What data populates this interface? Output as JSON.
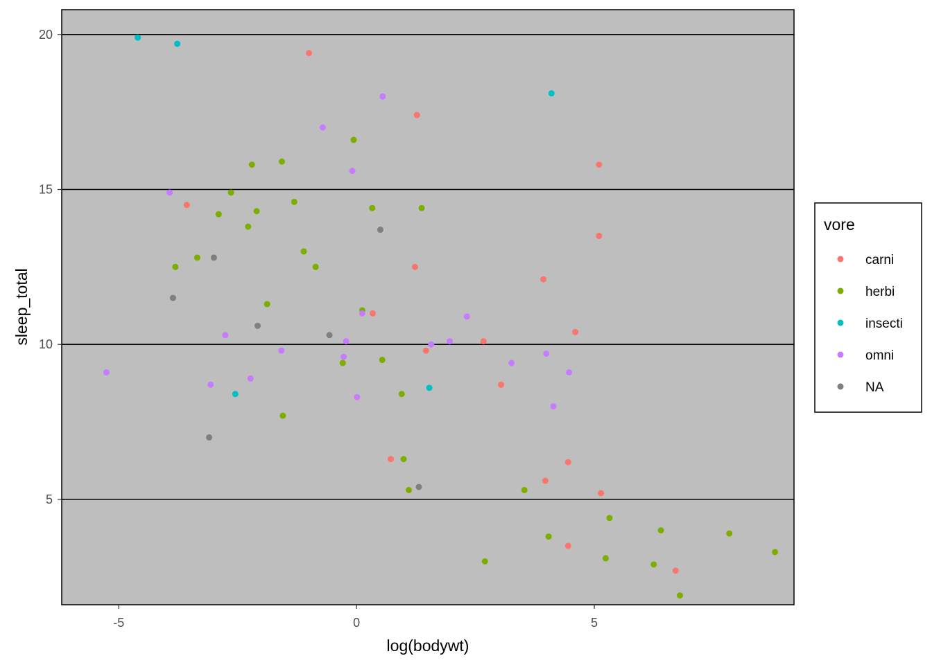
{
  "chart_data": {
    "type": "scatter",
    "title": "",
    "xlabel": "log(bodywt)",
    "ylabel": "sleep_total",
    "xlim": [
      -6.2,
      9.2
    ],
    "ylim": [
      1.6,
      20.8
    ],
    "x_ticks": [
      -5,
      0,
      5
    ],
    "x_tick_labels": [
      "-5",
      "0",
      "5"
    ],
    "y_ticks": [
      5,
      10,
      15,
      20
    ],
    "y_tick_labels": [
      "5",
      "10",
      "15",
      "20"
    ],
    "grid": "horizontal major lines",
    "panel_background": "#bebebe",
    "legend": {
      "title": "vore",
      "position": "right",
      "entries": [
        "carni",
        "herbi",
        "insecti",
        "omni",
        "NA"
      ]
    },
    "colors": {
      "carni": "#F8766D",
      "herbi": "#7CAE00",
      "insecti": "#00BFC4",
      "omni": "#C77CFF",
      "NA": "#7F7F7F"
    },
    "series": [
      {
        "name": "carni",
        "points": [
          [
            -1.0,
            19.4
          ],
          [
            1.27,
            17.4
          ],
          [
            -3.57,
            14.5
          ],
          [
            5.1,
            15.8
          ],
          [
            5.1,
            13.5
          ],
          [
            1.23,
            12.5
          ],
          [
            3.93,
            12.1
          ],
          [
            0.34,
            11.0
          ],
          [
            4.6,
            10.4
          ],
          [
            2.67,
            10.1
          ],
          [
            1.46,
            9.8
          ],
          [
            3.04,
            8.7
          ],
          [
            0.72,
            6.3
          ],
          [
            3.97,
            5.6
          ],
          [
            4.45,
            6.2
          ],
          [
            5.14,
            5.2
          ],
          [
            4.45,
            3.5
          ],
          [
            6.71,
            2.7
          ]
        ]
      },
      {
        "name": "herbi",
        "points": [
          [
            -0.06,
            16.6
          ],
          [
            -1.57,
            15.9
          ],
          [
            -2.2,
            15.8
          ],
          [
            -2.64,
            14.9
          ],
          [
            -1.31,
            14.6
          ],
          [
            -2.9,
            14.2
          ],
          [
            -2.1,
            14.3
          ],
          [
            0.33,
            14.4
          ],
          [
            1.37,
            14.4
          ],
          [
            -2.28,
            13.8
          ],
          [
            -1.11,
            13.0
          ],
          [
            -3.35,
            12.8
          ],
          [
            -3.81,
            12.5
          ],
          [
            -0.86,
            12.5
          ],
          [
            -1.88,
            11.3
          ],
          [
            0.12,
            11.1
          ],
          [
            -0.29,
            9.4
          ],
          [
            0.54,
            9.5
          ],
          [
            0.95,
            8.4
          ],
          [
            -1.55,
            7.7
          ],
          [
            0.99,
            6.3
          ],
          [
            1.1,
            5.3
          ],
          [
            3.53,
            5.3
          ],
          [
            5.32,
            4.4
          ],
          [
            6.4,
            4.0
          ],
          [
            7.84,
            3.9
          ],
          [
            4.04,
            3.8
          ],
          [
            8.8,
            3.3
          ],
          [
            2.7,
            3.0
          ],
          [
            5.24,
            3.1
          ],
          [
            6.25,
            2.9
          ],
          [
            6.8,
            1.9
          ]
        ]
      },
      {
        "name": "insecti",
        "points": [
          [
            -4.6,
            19.9
          ],
          [
            -3.77,
            19.7
          ],
          [
            4.1,
            18.1
          ],
          [
            -2.55,
            8.4
          ],
          [
            1.53,
            8.6
          ]
        ]
      },
      {
        "name": "omni",
        "points": [
          [
            0.55,
            18.0
          ],
          [
            -0.71,
            17.0
          ],
          [
            -0.09,
            15.6
          ],
          [
            -3.93,
            14.9
          ],
          [
            2.32,
            10.9
          ],
          [
            0.12,
            11.0
          ],
          [
            -2.76,
            10.3
          ],
          [
            -0.22,
            10.1
          ],
          [
            1.96,
            10.1
          ],
          [
            1.57,
            10.0
          ],
          [
            -1.58,
            9.8
          ],
          [
            -0.27,
            9.6
          ],
          [
            3.99,
            9.7
          ],
          [
            3.26,
            9.4
          ],
          [
            4.47,
            9.1
          ],
          [
            -5.26,
            9.1
          ],
          [
            -2.23,
            8.9
          ],
          [
            -3.07,
            8.7
          ],
          [
            0.01,
            8.3
          ],
          [
            4.14,
            8.0
          ]
        ]
      },
      {
        "name": "NA",
        "points": [
          [
            0.5,
            13.7
          ],
          [
            -3.0,
            12.8
          ],
          [
            -3.86,
            11.5
          ],
          [
            -2.08,
            10.6
          ],
          [
            -0.57,
            10.3
          ],
          [
            -3.1,
            7.0
          ],
          [
            1.31,
            5.4
          ]
        ]
      }
    ]
  }
}
